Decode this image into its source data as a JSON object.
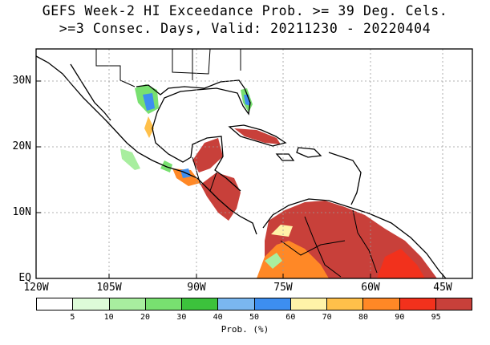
{
  "title_line1": "GEFS Week-2 HI Exceedance Prob. >= 39 Deg. Cels.",
  "title_line2": ">=3 Consec. Days, Valid: 20211230 - 20220404",
  "lat_labels": [
    "30N",
    "20N",
    "10N",
    "EQ"
  ],
  "lon_labels": [
    "120W",
    "105W",
    "90W",
    "75W",
    "60W",
    "45W"
  ],
  "legend": {
    "title": "Prob. (%)",
    "tick_labels": [
      "5",
      "10",
      "20",
      "30",
      "40",
      "50",
      "60",
      "70",
      "80",
      "90",
      "95"
    ],
    "colors": [
      "#ffffff",
      "#ddfbd8",
      "#a8ee9f",
      "#78e070",
      "#3cc23c",
      "#7ab7f0",
      "#3d8ef0",
      "#fff3a8",
      "#ffc04a",
      "#ff8826",
      "#f2311c",
      "#c8403a"
    ]
  },
  "colors": {
    "land_outline": "#000000",
    "grid": "#9a9a9a"
  }
}
